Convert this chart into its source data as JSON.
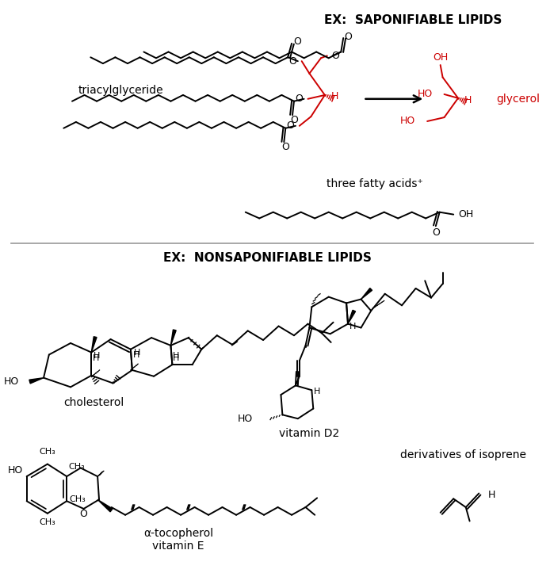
{
  "title_saponifiable": "EX:  SAPONIFIABLE LIPIDS",
  "title_nonsaponifiable": "EX:  NONSAPONIFIABLE LIPIDS",
  "label_triacylglyceride": "triacylglyceride",
  "label_glycerol": "glycerol",
  "label_three_fatty_acids": "three fatty acids",
  "label_cholesterol": "cholesterol",
  "label_vitamin_d2": "vitamin D2",
  "label_alpha_tocopherol": "α-tocopherol\nvitamin E",
  "label_isoprene": "derivatives of isoprene",
  "red_color": "#cc0000",
  "black_color": "#000000",
  "bg_color": "#ffffff",
  "fig_width": 6.94,
  "fig_height": 7.23
}
